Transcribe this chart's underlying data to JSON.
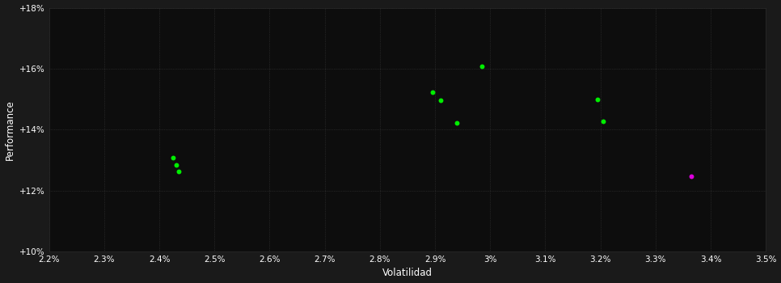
{
  "background_color": "#1a1a1a",
  "plot_bg_color": "#0d0d0d",
  "grid_color": "#444444",
  "xlabel": "Volatilidad",
  "ylabel": "Performance",
  "xlim": [
    0.022,
    0.035
  ],
  "ylim": [
    0.1,
    0.18
  ],
  "xticks": [
    0.022,
    0.023,
    0.024,
    0.025,
    0.026,
    0.027,
    0.028,
    0.029,
    0.03,
    0.031,
    0.032,
    0.033,
    0.034,
    0.035
  ],
  "yticks": [
    0.1,
    0.12,
    0.14,
    0.16,
    0.18
  ],
  "green_points": [
    [
      0.02425,
      0.1308
    ],
    [
      0.0243,
      0.1285
    ],
    [
      0.02435,
      0.1262
    ],
    [
      0.02985,
      0.1608
    ],
    [
      0.02895,
      0.1523
    ],
    [
      0.0291,
      0.1495
    ],
    [
      0.0294,
      0.1422
    ],
    [
      0.03195,
      0.15
    ],
    [
      0.03205,
      0.1428
    ]
  ],
  "magenta_points": [
    [
      0.03365,
      0.1248
    ]
  ],
  "point_size": 18,
  "green_color": "#00ee00",
  "magenta_color": "#dd00dd",
  "font_color": "#ffffff",
  "font_size_ticks": 7.5,
  "font_size_labels": 8.5,
  "fig_width": 9.66,
  "fig_height": 3.5,
  "dpi": 100
}
